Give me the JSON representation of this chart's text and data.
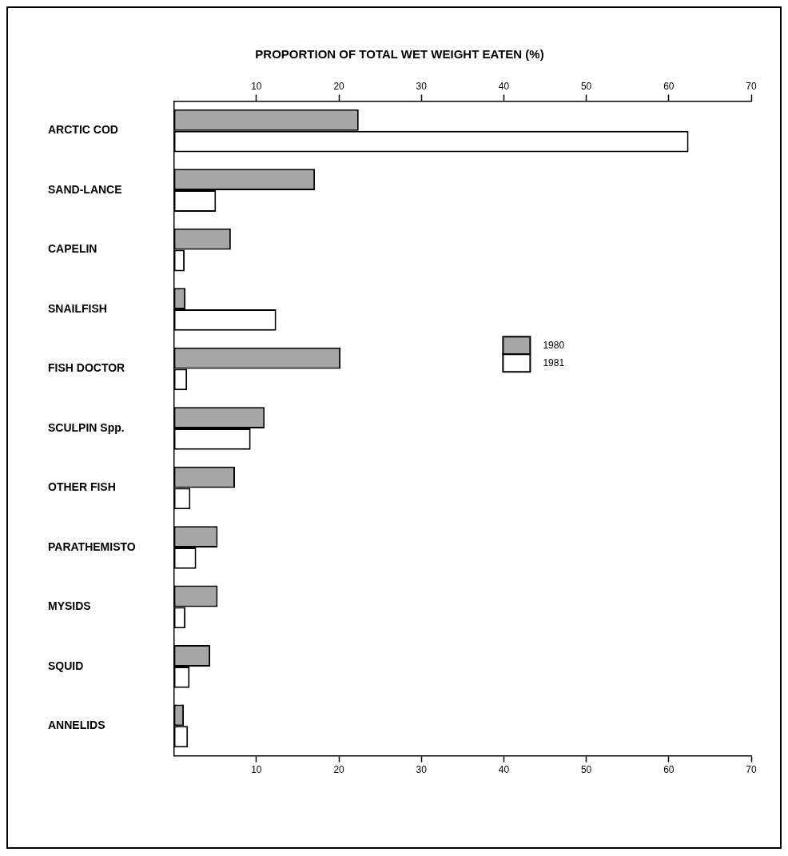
{
  "chart_data": {
    "type": "bar",
    "orientation": "horizontal",
    "title": "PROPORTION OF TOTAL WET WEIGHT EATEN (%)",
    "categories": [
      "ARCTIC COD",
      "SAND-LANCE",
      "CAPELIN",
      "SNAILFISH",
      "FISH DOCTOR",
      "SCULPIN Spp.",
      "OTHER FISH",
      "PARATHEMISTO",
      "MYSIDS",
      "SQUID",
      "ANNELIDS"
    ],
    "series": [
      {
        "name": "1980",
        "color": "#a6a6a6",
        "values": [
          22.4,
          17.1,
          6.9,
          1.4,
          20.2,
          11.0,
          7.4,
          5.3,
          5.3,
          4.4,
          1.2
        ]
      },
      {
        "name": "1981",
        "color": "#ffffff",
        "values": [
          62.4,
          5.1,
          1.3,
          12.4,
          1.6,
          9.3,
          2.0,
          2.7,
          1.4,
          1.9,
          1.7
        ]
      }
    ],
    "xlim": [
      0,
      70
    ],
    "xticks": [
      10,
      20,
      30,
      40,
      50,
      60,
      70
    ],
    "x2lim": [
      0,
      70
    ],
    "x2ticks": [
      10,
      20,
      30,
      40,
      50,
      60,
      70
    ],
    "grid": false,
    "legend": "right"
  }
}
